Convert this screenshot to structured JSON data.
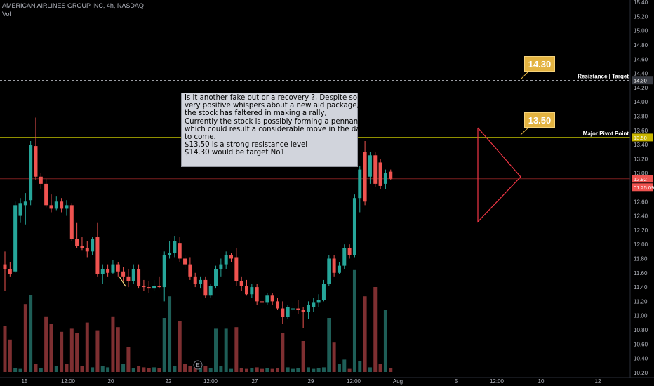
{
  "chart_data": {
    "type": "candlestick",
    "title": "AMERICAN AIRLINES GROUP INC, 4h, NASDAQ",
    "subtitle": "Vol",
    "x_ticks": [
      "15",
      "12:00",
      "20",
      "22",
      "12:00",
      "27",
      "29",
      "12:00",
      "Aug",
      "5",
      "12:00",
      "10",
      "12"
    ],
    "y_ticks": [
      10.2,
      10.4,
      10.6,
      10.8,
      11.0,
      11.2,
      11.4,
      11.6,
      11.8,
      12.0,
      12.2,
      12.4,
      12.6,
      12.8,
      13.0,
      13.2,
      13.4,
      13.6,
      13.8,
      14.0,
      14.2,
      14.4,
      14.6,
      14.8,
      15.0,
      15.2,
      15.4
    ],
    "ylim": [
      10.13,
      15.43
    ],
    "candles": [
      {
        "o": 11.72,
        "h": 11.9,
        "l": 11.35,
        "c": 11.65
      },
      {
        "o": 11.65,
        "h": 11.75,
        "l": 11.55,
        "c": 11.58
      },
      {
        "o": 11.62,
        "h": 12.6,
        "l": 11.6,
        "c": 12.55
      },
      {
        "o": 12.4,
        "h": 12.65,
        "l": 12.3,
        "c": 12.58
      },
      {
        "o": 12.55,
        "h": 12.72,
        "l": 12.28,
        "c": 12.6
      },
      {
        "o": 12.62,
        "h": 13.45,
        "l": 12.55,
        "c": 13.4
      },
      {
        "o": 13.38,
        "h": 13.78,
        "l": 12.9,
        "c": 12.95
      },
      {
        "o": 12.95,
        "h": 13.0,
        "l": 12.78,
        "c": 12.85
      },
      {
        "o": 12.85,
        "h": 12.92,
        "l": 12.52,
        "c": 12.55
      },
      {
        "o": 12.55,
        "h": 12.7,
        "l": 12.45,
        "c": 12.5
      },
      {
        "o": 12.5,
        "h": 12.68,
        "l": 12.48,
        "c": 12.6
      },
      {
        "o": 12.6,
        "h": 12.65,
        "l": 12.45,
        "c": 12.5
      },
      {
        "o": 12.5,
        "h": 12.62,
        "l": 12.4,
        "c": 12.55
      },
      {
        "o": 12.55,
        "h": 12.58,
        "l": 12.05,
        "c": 12.08
      },
      {
        "o": 12.08,
        "h": 12.3,
        "l": 11.95,
        "c": 11.98
      },
      {
        "o": 11.98,
        "h": 12.1,
        "l": 11.92,
        "c": 11.95
      },
      {
        "o": 11.95,
        "h": 12.05,
        "l": 11.82,
        "c": 11.9
      },
      {
        "o": 11.9,
        "h": 12.1,
        "l": 11.85,
        "c": 12.08
      },
      {
        "o": 12.1,
        "h": 12.3,
        "l": 11.55,
        "c": 11.58
      },
      {
        "o": 11.58,
        "h": 11.72,
        "l": 11.45,
        "c": 11.65
      },
      {
        "o": 11.65,
        "h": 11.72,
        "l": 11.55,
        "c": 11.6
      },
      {
        "o": 11.6,
        "h": 11.78,
        "l": 11.58,
        "c": 11.72
      },
      {
        "o": 11.72,
        "h": 11.75,
        "l": 11.55,
        "c": 11.62
      },
      {
        "o": 11.62,
        "h": 11.68,
        "l": 11.48,
        "c": 11.55
      },
      {
        "o": 11.55,
        "h": 11.65,
        "l": 11.4,
        "c": 11.48
      },
      {
        "o": 11.48,
        "h": 11.72,
        "l": 11.45,
        "c": 11.65
      },
      {
        "o": 11.65,
        "h": 11.72,
        "l": 11.38,
        "c": 11.42
      },
      {
        "o": 11.42,
        "h": 11.5,
        "l": 11.35,
        "c": 11.4
      },
      {
        "o": 11.4,
        "h": 11.48,
        "l": 11.32,
        "c": 11.38
      },
      {
        "o": 11.38,
        "h": 11.5,
        "l": 11.35,
        "c": 11.42
      },
      {
        "o": 11.42,
        "h": 11.55,
        "l": 11.38,
        "c": 11.4
      },
      {
        "o": 11.4,
        "h": 11.9,
        "l": 11.2,
        "c": 11.85
      },
      {
        "o": 11.85,
        "h": 12.05,
        "l": 11.8,
        "c": 11.88
      },
      {
        "o": 11.88,
        "h": 12.12,
        "l": 11.82,
        "c": 12.05
      },
      {
        "o": 12.02,
        "h": 12.1,
        "l": 11.75,
        "c": 11.8
      },
      {
        "o": 11.8,
        "h": 11.85,
        "l": 11.65,
        "c": 11.72
      },
      {
        "o": 11.72,
        "h": 11.82,
        "l": 11.5,
        "c": 11.55
      },
      {
        "o": 11.55,
        "h": 11.6,
        "l": 11.4,
        "c": 11.45
      },
      {
        "o": 11.45,
        "h": 11.55,
        "l": 11.38,
        "c": 11.5
      },
      {
        "o": 11.5,
        "h": 11.55,
        "l": 11.25,
        "c": 11.28
      },
      {
        "o": 11.28,
        "h": 11.45,
        "l": 11.25,
        "c": 11.42
      },
      {
        "o": 11.42,
        "h": 11.7,
        "l": 11.38,
        "c": 11.65
      },
      {
        "o": 11.65,
        "h": 11.8,
        "l": 11.55,
        "c": 11.72
      },
      {
        "o": 11.72,
        "h": 11.9,
        "l": 11.65,
        "c": 11.85
      },
      {
        "o": 11.85,
        "h": 11.88,
        "l": 11.75,
        "c": 11.8
      },
      {
        "o": 11.82,
        "h": 11.95,
        "l": 11.42,
        "c": 11.48
      },
      {
        "o": 11.48,
        "h": 11.55,
        "l": 11.35,
        "c": 11.42
      },
      {
        "o": 11.42,
        "h": 11.5,
        "l": 11.28,
        "c": 11.3
      },
      {
        "o": 11.3,
        "h": 11.45,
        "l": 11.25,
        "c": 11.4
      },
      {
        "o": 11.4,
        "h": 11.45,
        "l": 11.15,
        "c": 11.2
      },
      {
        "o": 11.2,
        "h": 11.28,
        "l": 11.12,
        "c": 11.18
      },
      {
        "o": 11.18,
        "h": 11.32,
        "l": 11.15,
        "c": 11.28
      },
      {
        "o": 11.28,
        "h": 11.32,
        "l": 11.15,
        "c": 11.2
      },
      {
        "o": 11.2,
        "h": 11.25,
        "l": 11.08,
        "c": 11.1
      },
      {
        "o": 11.1,
        "h": 11.2,
        "l": 10.88,
        "c": 10.98
      },
      {
        "o": 10.98,
        "h": 11.15,
        "l": 10.95,
        "c": 11.12
      },
      {
        "o": 11.1,
        "h": 11.18,
        "l": 11.05,
        "c": 11.1
      },
      {
        "o": 11.1,
        "h": 11.22,
        "l": 11.02,
        "c": 11.08
      },
      {
        "o": 11.08,
        "h": 11.12,
        "l": 10.82,
        "c": 11.05
      },
      {
        "o": 11.05,
        "h": 11.2,
        "l": 10.95,
        "c": 11.15
      },
      {
        "o": 11.12,
        "h": 11.25,
        "l": 11.05,
        "c": 11.18
      },
      {
        "o": 11.18,
        "h": 11.3,
        "l": 11.12,
        "c": 11.22
      },
      {
        "o": 11.22,
        "h": 11.5,
        "l": 11.2,
        "c": 11.45
      },
      {
        "o": 11.45,
        "h": 11.85,
        "l": 11.42,
        "c": 11.8
      },
      {
        "o": 11.8,
        "h": 11.85,
        "l": 11.55,
        "c": 11.6
      },
      {
        "o": 11.6,
        "h": 11.75,
        "l": 11.58,
        "c": 11.7
      },
      {
        "o": 11.7,
        "h": 12.0,
        "l": 11.65,
        "c": 11.95
      },
      {
        "o": 11.95,
        "h": 12.0,
        "l": 11.8,
        "c": 11.85
      },
      {
        "o": 11.85,
        "h": 12.7,
        "l": 11.82,
        "c": 12.65
      },
      {
        "o": 12.65,
        "h": 13.1,
        "l": 12.45,
        "c": 13.05
      },
      {
        "o": 13.3,
        "h": 13.45,
        "l": 12.55,
        "c": 12.6
      },
      {
        "o": 12.95,
        "h": 13.3,
        "l": 12.85,
        "c": 13.25
      },
      {
        "o": 13.25,
        "h": 13.3,
        "l": 12.8,
        "c": 12.85
      },
      {
        "o": 13.15,
        "h": 13.2,
        "l": 12.78,
        "c": 12.82
      },
      {
        "o": 12.85,
        "h": 13.05,
        "l": 12.78,
        "c": 13.0
      },
      {
        "o": 13.02,
        "h": 13.05,
        "l": 12.9,
        "c": 12.92
      }
    ],
    "volume": [
      {
        "v": 0.6,
        "up": false
      },
      {
        "v": 0.42,
        "up": false
      },
      {
        "v": 0.05,
        "up": true
      },
      {
        "v": 0.04,
        "up": true
      },
      {
        "v": 0.88,
        "up": false
      },
      {
        "v": 1.0,
        "up": true
      },
      {
        "v": 0.1,
        "up": false
      },
      {
        "v": 0.05,
        "up": true
      },
      {
        "v": 0.72,
        "up": false
      },
      {
        "v": 0.62,
        "up": false
      },
      {
        "v": 0.08,
        "up": true
      },
      {
        "v": 0.52,
        "up": false
      },
      {
        "v": 0.1,
        "up": false
      },
      {
        "v": 0.56,
        "up": false
      },
      {
        "v": 0.5,
        "up": false
      },
      {
        "v": 0.08,
        "up": false
      },
      {
        "v": 0.64,
        "up": false
      },
      {
        "v": 0.06,
        "up": true
      },
      {
        "v": 0.54,
        "up": false
      },
      {
        "v": 0.08,
        "up": true
      },
      {
        "v": 0.06,
        "up": true
      },
      {
        "v": 0.72,
        "up": false
      },
      {
        "v": 0.58,
        "up": false
      },
      {
        "v": 0.1,
        "up": true
      },
      {
        "v": 0.32,
        "up": false
      },
      {
        "v": 0.05,
        "up": true
      },
      {
        "v": 0.08,
        "up": false
      },
      {
        "v": 0.06,
        "up": false
      },
      {
        "v": 0.05,
        "up": false
      },
      {
        "v": 0.06,
        "up": true
      },
      {
        "v": 0.05,
        "up": false
      },
      {
        "v": 0.7,
        "up": true
      },
      {
        "v": 0.98,
        "up": true
      },
      {
        "v": 0.08,
        "up": true
      },
      {
        "v": 0.66,
        "up": false
      },
      {
        "v": 0.1,
        "up": false
      },
      {
        "v": 0.08,
        "up": false
      },
      {
        "v": 0.06,
        "up": false
      },
      {
        "v": 0.06,
        "up": true
      },
      {
        "v": 0.08,
        "up": false
      },
      {
        "v": 0.05,
        "up": true
      },
      {
        "v": 0.56,
        "up": true
      },
      {
        "v": 0.08,
        "up": true
      },
      {
        "v": 0.56,
        "up": true
      },
      {
        "v": 0.04,
        "up": true
      },
      {
        "v": 0.58,
        "up": false
      },
      {
        "v": 0.05,
        "up": false
      },
      {
        "v": 0.04,
        "up": false
      },
      {
        "v": 0.05,
        "up": true
      },
      {
        "v": 0.06,
        "up": false
      },
      {
        "v": 0.04,
        "up": false
      },
      {
        "v": 0.05,
        "up": true
      },
      {
        "v": 0.04,
        "up": false
      },
      {
        "v": 0.05,
        "up": false
      },
      {
        "v": 0.5,
        "up": false
      },
      {
        "v": 0.06,
        "up": true
      },
      {
        "v": 0.04,
        "up": true
      },
      {
        "v": 0.05,
        "up": true
      },
      {
        "v": 0.4,
        "up": false
      },
      {
        "v": 0.06,
        "up": true
      },
      {
        "v": 0.04,
        "up": true
      },
      {
        "v": 0.05,
        "up": true
      },
      {
        "v": 0.06,
        "up": true
      },
      {
        "v": 0.7,
        "up": true
      },
      {
        "v": 0.38,
        "up": false
      },
      {
        "v": 0.1,
        "up": true
      },
      {
        "v": 0.16,
        "up": true
      },
      {
        "v": 0.04,
        "up": false
      },
      {
        "v": 1.32,
        "up": true
      },
      {
        "v": 0.14,
        "up": true
      },
      {
        "v": 0.98,
        "up": false
      },
      {
        "v": 0.06,
        "up": true
      },
      {
        "v": 1.1,
        "up": false
      },
      {
        "v": 0.1,
        "up": false
      },
      {
        "v": 0.8,
        "up": true
      },
      {
        "v": 0.05,
        "up": false
      }
    ],
    "horizontal_lines": [
      {
        "price": 14.3,
        "label": "Resistance | Target",
        "style": "dashed",
        "color": "#d1d4dc"
      },
      {
        "price": 13.5,
        "label": "Major Pivot Point",
        "style": "solid",
        "color": "#e6e600"
      },
      {
        "price": 12.92,
        "label": "",
        "style": "solid",
        "color": "#7a1f1f"
      }
    ],
    "price_tags": [
      {
        "value": "14.30",
        "bg": "#3a3d45"
      },
      {
        "value": "13.50",
        "bg": "#c9b600"
      },
      {
        "value": "12.92",
        "bg": "#ef5350"
      },
      {
        "value": "01:25:09",
        "bg": "#ef5350"
      }
    ],
    "callouts": [
      "14.30",
      "13.50"
    ],
    "annotation": {
      "lines": [
        "Is it another fake out or a recovery ?, Despite some",
        "very positive whispers about a new aid package,",
        "the stock has faltered in making a rally,",
        "Currently the stock is possibly forming a pennant",
        "which could result a considerable move in the days",
        "to come.",
        "$13.50 is a strong resistance level",
        "$14.30 would be target No1"
      ]
    },
    "event_marker": "E",
    "colors": {
      "up": "#26a69a",
      "down": "#ef5350",
      "vol_up": "#1e5e57",
      "vol_down": "#7e2f31",
      "pennant": "#f23645",
      "callout": "#e3b341"
    },
    "grid": false
  }
}
